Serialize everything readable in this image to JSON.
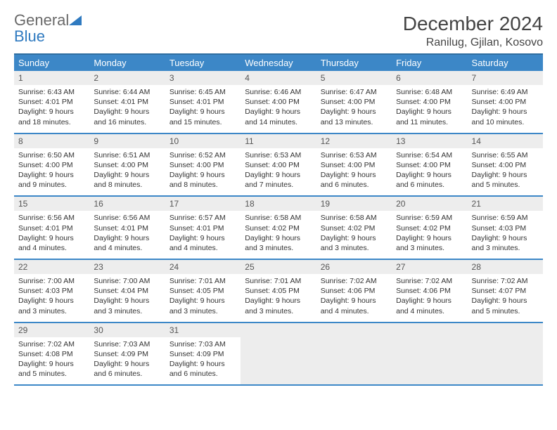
{
  "brand": {
    "word1": "General",
    "word2": "Blue"
  },
  "title": "December 2024",
  "location": "Ranilug, Gjilan, Kosovo",
  "colors": {
    "header_bg": "#3c87c7",
    "header_border_top": "#2f6ea0",
    "daynum_bg": "#ededed",
    "row_border": "#3c87c7",
    "text": "#333333"
  },
  "weekdays": [
    "Sunday",
    "Monday",
    "Tuesday",
    "Wednesday",
    "Thursday",
    "Friday",
    "Saturday"
  ],
  "days": [
    {
      "n": 1,
      "sr": "6:43 AM",
      "ss": "4:01 PM",
      "dl": "9 hours and 18 minutes."
    },
    {
      "n": 2,
      "sr": "6:44 AM",
      "ss": "4:01 PM",
      "dl": "9 hours and 16 minutes."
    },
    {
      "n": 3,
      "sr": "6:45 AM",
      "ss": "4:01 PM",
      "dl": "9 hours and 15 minutes."
    },
    {
      "n": 4,
      "sr": "6:46 AM",
      "ss": "4:00 PM",
      "dl": "9 hours and 14 minutes."
    },
    {
      "n": 5,
      "sr": "6:47 AM",
      "ss": "4:00 PM",
      "dl": "9 hours and 13 minutes."
    },
    {
      "n": 6,
      "sr": "6:48 AM",
      "ss": "4:00 PM",
      "dl": "9 hours and 11 minutes."
    },
    {
      "n": 7,
      "sr": "6:49 AM",
      "ss": "4:00 PM",
      "dl": "9 hours and 10 minutes."
    },
    {
      "n": 8,
      "sr": "6:50 AM",
      "ss": "4:00 PM",
      "dl": "9 hours and 9 minutes."
    },
    {
      "n": 9,
      "sr": "6:51 AM",
      "ss": "4:00 PM",
      "dl": "9 hours and 8 minutes."
    },
    {
      "n": 10,
      "sr": "6:52 AM",
      "ss": "4:00 PM",
      "dl": "9 hours and 8 minutes."
    },
    {
      "n": 11,
      "sr": "6:53 AM",
      "ss": "4:00 PM",
      "dl": "9 hours and 7 minutes."
    },
    {
      "n": 12,
      "sr": "6:53 AM",
      "ss": "4:00 PM",
      "dl": "9 hours and 6 minutes."
    },
    {
      "n": 13,
      "sr": "6:54 AM",
      "ss": "4:00 PM",
      "dl": "9 hours and 6 minutes."
    },
    {
      "n": 14,
      "sr": "6:55 AM",
      "ss": "4:00 PM",
      "dl": "9 hours and 5 minutes."
    },
    {
      "n": 15,
      "sr": "6:56 AM",
      "ss": "4:01 PM",
      "dl": "9 hours and 4 minutes."
    },
    {
      "n": 16,
      "sr": "6:56 AM",
      "ss": "4:01 PM",
      "dl": "9 hours and 4 minutes."
    },
    {
      "n": 17,
      "sr": "6:57 AM",
      "ss": "4:01 PM",
      "dl": "9 hours and 4 minutes."
    },
    {
      "n": 18,
      "sr": "6:58 AM",
      "ss": "4:02 PM",
      "dl": "9 hours and 3 minutes."
    },
    {
      "n": 19,
      "sr": "6:58 AM",
      "ss": "4:02 PM",
      "dl": "9 hours and 3 minutes."
    },
    {
      "n": 20,
      "sr": "6:59 AM",
      "ss": "4:02 PM",
      "dl": "9 hours and 3 minutes."
    },
    {
      "n": 21,
      "sr": "6:59 AM",
      "ss": "4:03 PM",
      "dl": "9 hours and 3 minutes."
    },
    {
      "n": 22,
      "sr": "7:00 AM",
      "ss": "4:03 PM",
      "dl": "9 hours and 3 minutes."
    },
    {
      "n": 23,
      "sr": "7:00 AM",
      "ss": "4:04 PM",
      "dl": "9 hours and 3 minutes."
    },
    {
      "n": 24,
      "sr": "7:01 AM",
      "ss": "4:05 PM",
      "dl": "9 hours and 3 minutes."
    },
    {
      "n": 25,
      "sr": "7:01 AM",
      "ss": "4:05 PM",
      "dl": "9 hours and 3 minutes."
    },
    {
      "n": 26,
      "sr": "7:02 AM",
      "ss": "4:06 PM",
      "dl": "9 hours and 4 minutes."
    },
    {
      "n": 27,
      "sr": "7:02 AM",
      "ss": "4:06 PM",
      "dl": "9 hours and 4 minutes."
    },
    {
      "n": 28,
      "sr": "7:02 AM",
      "ss": "4:07 PM",
      "dl": "9 hours and 5 minutes."
    },
    {
      "n": 29,
      "sr": "7:02 AM",
      "ss": "4:08 PM",
      "dl": "9 hours and 5 minutes."
    },
    {
      "n": 30,
      "sr": "7:03 AM",
      "ss": "4:09 PM",
      "dl": "9 hours and 6 minutes."
    },
    {
      "n": 31,
      "sr": "7:03 AM",
      "ss": "4:09 PM",
      "dl": "9 hours and 6 minutes."
    }
  ],
  "labels": {
    "sunrise": "Sunrise:",
    "sunset": "Sunset:",
    "daylight": "Daylight:"
  },
  "first_weekday_index": 0,
  "trailing_empty": 4
}
